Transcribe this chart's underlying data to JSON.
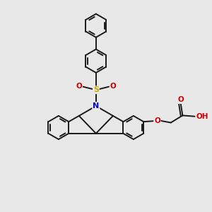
{
  "background_color": "#e8e8e8",
  "bond_color": "#1a1a1a",
  "N_color": "#0000cc",
  "O_color": "#cc0000",
  "S_color": "#ccaa00",
  "line_width": 1.4,
  "figsize": [
    3.0,
    3.0
  ],
  "dpi": 100,
  "xlim": [
    -4.5,
    5.5
  ],
  "ylim": [
    -5.5,
    5.5
  ]
}
